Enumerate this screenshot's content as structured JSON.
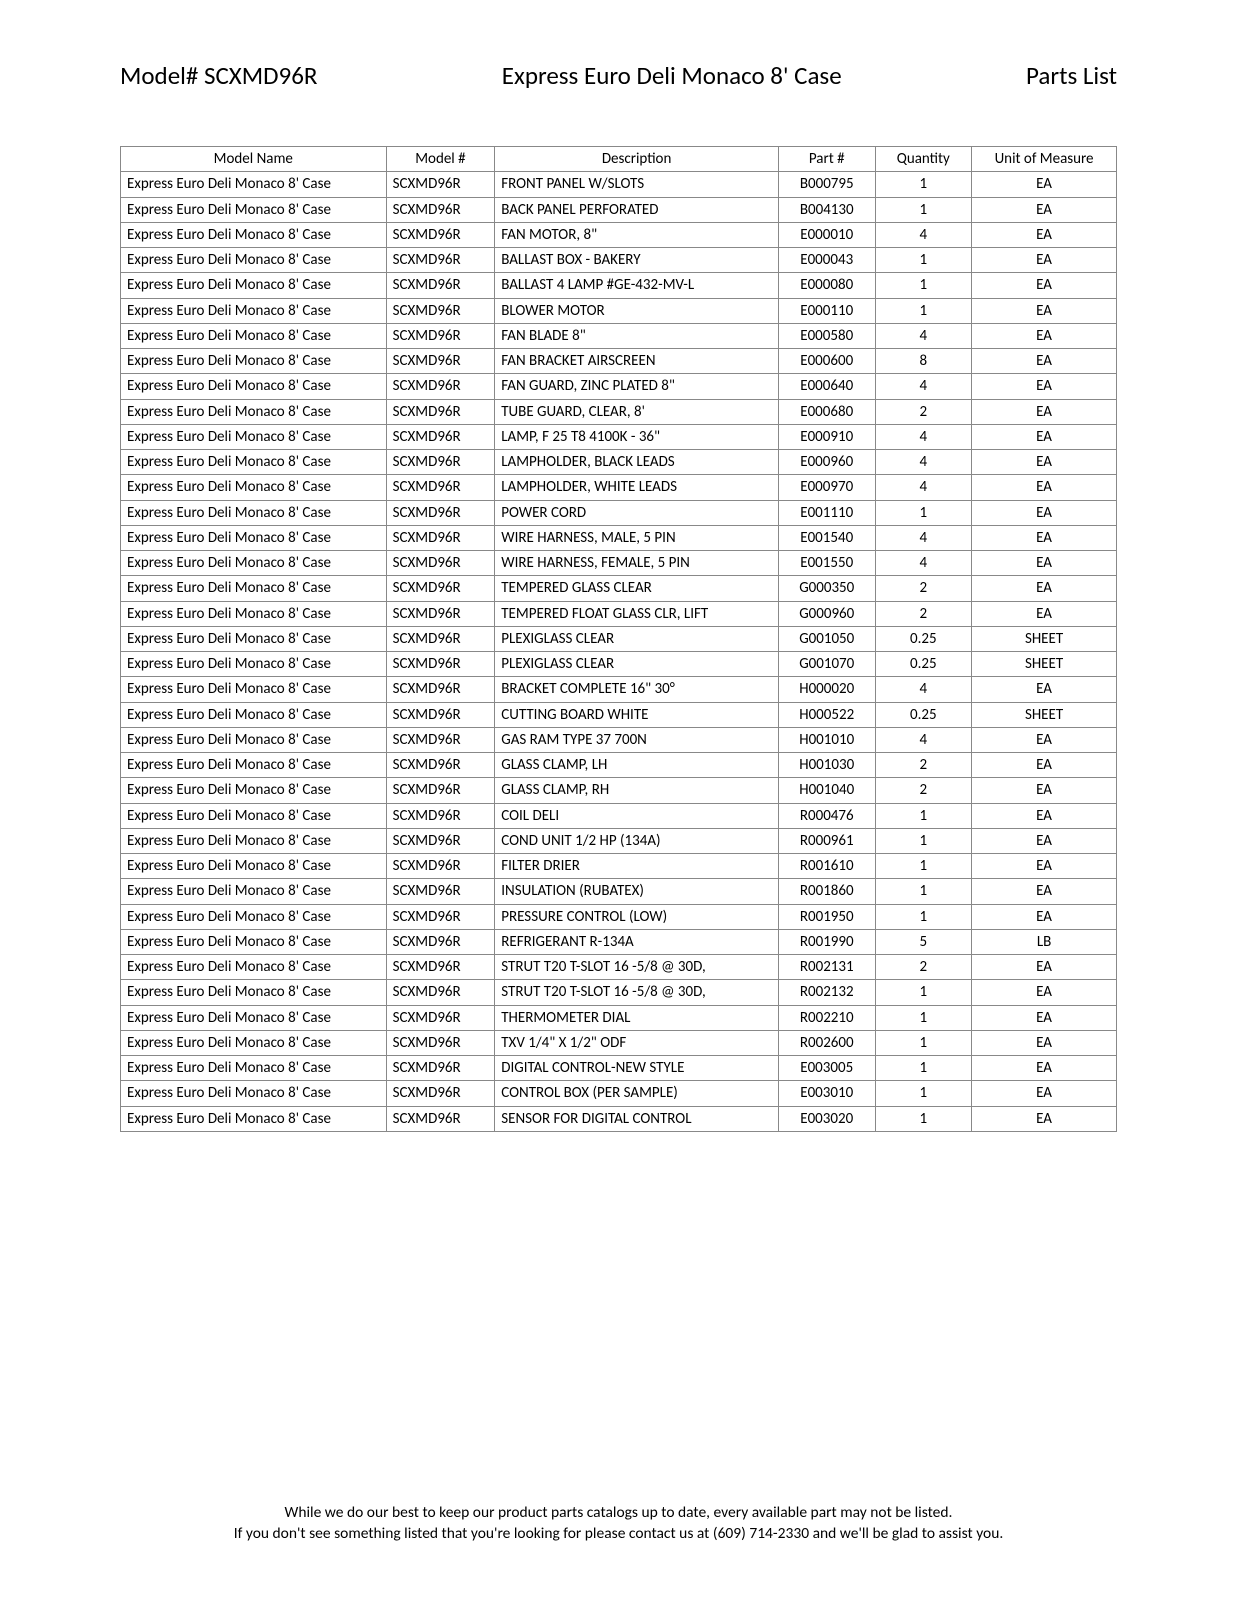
{
  "header": {
    "model_label": "Model# SCXMD96R",
    "title": "Express Euro Deli Monaco 8' Case",
    "parts_list_label": "Parts List"
  },
  "table": {
    "columns": [
      "Model Name",
      "Model #",
      "Description",
      "Part #",
      "Quantity",
      "Unit of Measure"
    ],
    "rows": [
      [
        "Express Euro Deli Monaco 8' Case",
        "SCXMD96R",
        "FRONT PANEL W/SLOTS",
        "B000795",
        "1",
        "EA"
      ],
      [
        "Express Euro Deli Monaco 8' Case",
        "SCXMD96R",
        "BACK PANEL PERFORATED",
        "B004130",
        "1",
        "EA"
      ],
      [
        "Express Euro Deli Monaco 8' Case",
        "SCXMD96R",
        "FAN MOTOR, 8\"",
        "E000010",
        "4",
        "EA"
      ],
      [
        "Express Euro Deli Monaco 8' Case",
        "SCXMD96R",
        "BALLAST BOX - BAKERY",
        "E000043",
        "1",
        "EA"
      ],
      [
        "Express Euro Deli Monaco 8' Case",
        "SCXMD96R",
        "BALLAST 4 LAMP #GE-432-MV-L",
        "E000080",
        "1",
        "EA"
      ],
      [
        "Express Euro Deli Monaco 8' Case",
        "SCXMD96R",
        "BLOWER MOTOR",
        "E000110",
        "1",
        "EA"
      ],
      [
        "Express Euro Deli Monaco 8' Case",
        "SCXMD96R",
        "FAN BLADE 8\"",
        "E000580",
        "4",
        "EA"
      ],
      [
        "Express Euro Deli Monaco 8' Case",
        "SCXMD96R",
        "FAN BRACKET AIRSCREEN",
        "E000600",
        "8",
        "EA"
      ],
      [
        "Express Euro Deli Monaco 8' Case",
        "SCXMD96R",
        "FAN GUARD,  ZINC PLATED 8\"",
        "E000640",
        "4",
        "EA"
      ],
      [
        "Express Euro Deli Monaco 8' Case",
        "SCXMD96R",
        "TUBE GUARD, CLEAR, 8'",
        "E000680",
        "2",
        "EA"
      ],
      [
        "Express Euro Deli Monaco 8' Case",
        "SCXMD96R",
        "LAMP, F 25 T8 4100K - 36\"",
        "E000910",
        "4",
        "EA"
      ],
      [
        "Express Euro Deli Monaco 8' Case",
        "SCXMD96R",
        "LAMPHOLDER, BLACK LEADS",
        "E000960",
        "4",
        "EA"
      ],
      [
        "Express Euro Deli Monaco 8' Case",
        "SCXMD96R",
        "LAMPHOLDER, WHITE LEADS",
        "E000970",
        "4",
        "EA"
      ],
      [
        "Express Euro Deli Monaco 8' Case",
        "SCXMD96R",
        "POWER CORD",
        "E001110",
        "1",
        "EA"
      ],
      [
        "Express Euro Deli Monaco 8' Case",
        "SCXMD96R",
        "WIRE HARNESS, MALE, 5 PIN",
        "E001540",
        "4",
        "EA"
      ],
      [
        "Express Euro Deli Monaco 8' Case",
        "SCXMD96R",
        "WIRE HARNESS, FEMALE, 5 PIN",
        "E001550",
        "4",
        "EA"
      ],
      [
        "Express Euro Deli Monaco 8' Case",
        "SCXMD96R",
        "TEMPERED GLASS CLEAR",
        "G000350",
        "2",
        "EA"
      ],
      [
        "Express Euro Deli Monaco 8' Case",
        "SCXMD96R",
        "TEMPERED FLOAT GLASS CLR, LIFT",
        "G000960",
        "2",
        "EA"
      ],
      [
        "Express Euro Deli Monaco 8' Case",
        "SCXMD96R",
        "PLEXIGLASS CLEAR",
        "G001050",
        "0.25",
        "SHEET"
      ],
      [
        "Express Euro Deli Monaco 8' Case",
        "SCXMD96R",
        "PLEXIGLASS CLEAR",
        "G001070",
        "0.25",
        "SHEET"
      ],
      [
        "Express Euro Deli Monaco 8' Case",
        "SCXMD96R",
        "BRACKET COMPLETE 16\" 30°",
        "H000020",
        "4",
        "EA"
      ],
      [
        "Express Euro Deli Monaco 8' Case",
        "SCXMD96R",
        "CUTTING BOARD WHITE",
        "H000522",
        "0.25",
        "SHEET"
      ],
      [
        "Express Euro Deli Monaco 8' Case",
        "SCXMD96R",
        "GAS RAM TYPE 37 700N",
        "H001010",
        "4",
        "EA"
      ],
      [
        "Express Euro Deli Monaco 8' Case",
        "SCXMD96R",
        "GLASS CLAMP, LH",
        "H001030",
        "2",
        "EA"
      ],
      [
        "Express Euro Deli Monaco 8' Case",
        "SCXMD96R",
        "GLASS CLAMP, RH",
        "H001040",
        "2",
        "EA"
      ],
      [
        "Express Euro Deli Monaco 8' Case",
        "SCXMD96R",
        "COIL DELI",
        "R000476",
        "1",
        "EA"
      ],
      [
        "Express Euro Deli Monaco 8' Case",
        "SCXMD96R",
        "COND UNIT 1/2 HP (134A)",
        "R000961",
        "1",
        "EA"
      ],
      [
        "Express Euro Deli Monaco 8' Case",
        "SCXMD96R",
        "FILTER DRIER",
        "R001610",
        "1",
        "EA"
      ],
      [
        "Express Euro Deli Monaco 8' Case",
        "SCXMD96R",
        "INSULATION (RUBATEX)",
        "R001860",
        "1",
        "EA"
      ],
      [
        "Express Euro Deli Monaco 8' Case",
        "SCXMD96R",
        "PRESSURE CONTROL (LOW)",
        "R001950",
        "1",
        "EA"
      ],
      [
        "Express Euro Deli Monaco 8' Case",
        "SCXMD96R",
        "REFRIGERANT R-134A",
        "R001990",
        "5",
        "LB"
      ],
      [
        "Express Euro Deli Monaco 8' Case",
        "SCXMD96R",
        "STRUT T20 T-SLOT 16 -5/8 @ 30D,",
        "R002131",
        "2",
        "EA"
      ],
      [
        "Express Euro Deli Monaco 8' Case",
        "SCXMD96R",
        "STRUT T20 T-SLOT 16 -5/8 @ 30D,",
        "R002132",
        "1",
        "EA"
      ],
      [
        "Express Euro Deli Monaco 8' Case",
        "SCXMD96R",
        "THERMOMETER DIAL",
        "R002210",
        "1",
        "EA"
      ],
      [
        "Express Euro Deli Monaco 8' Case",
        "SCXMD96R",
        "TXV 1/4\" X 1/2\" ODF",
        "R002600",
        "1",
        "EA"
      ],
      [
        "Express Euro Deli Monaco 8' Case",
        "SCXMD96R",
        "DIGITAL CONTROL-NEW STYLE",
        "E003005",
        "1",
        "EA"
      ],
      [
        "Express Euro Deli Monaco 8' Case",
        "SCXMD96R",
        "CONTROL BOX (PER SAMPLE)",
        "E003010",
        "1",
        "EA"
      ],
      [
        "Express Euro Deli Monaco 8' Case",
        "SCXMD96R",
        "SENSOR FOR DIGITAL CONTROL",
        "E003020",
        "1",
        "EA"
      ]
    ]
  },
  "footer": {
    "line1": "While we do our best to keep our product parts catalogs up to date, every available part may not be listed.",
    "line2": "If you don't see something listed that you're looking for please contact us at (609) 714-2330 and we'll be glad to assist you."
  }
}
